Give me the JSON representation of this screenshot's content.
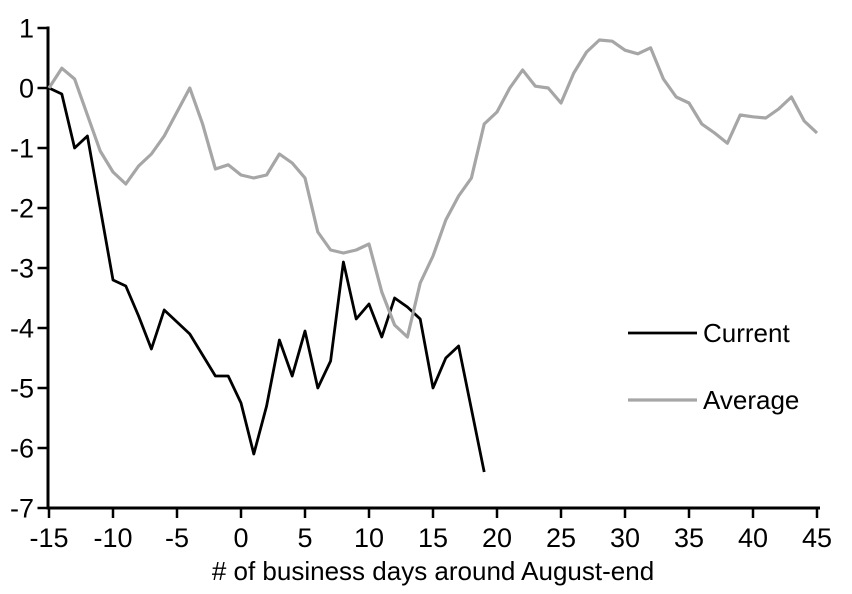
{
  "chart_data": {
    "type": "line",
    "title": "",
    "xlabel": "# of business days around August-end",
    "ylabel": "",
    "xlim": [
      -15,
      45
    ],
    "ylim": [
      -7,
      1
    ],
    "x_ticks": [
      -15,
      -10,
      -5,
      0,
      5,
      10,
      15,
      20,
      25,
      30,
      35,
      40,
      45
    ],
    "y_ticks": [
      1,
      0,
      -1,
      -2,
      -3,
      -4,
      -5,
      -6,
      -7
    ],
    "grid": false,
    "legend_position": "right-middle",
    "axis_color": "#000000",
    "series": [
      {
        "name": "Current",
        "color": "#000000",
        "stroke_width": 2.8,
        "x_start": -15,
        "x_step": 1,
        "values": [
          0,
          -0.1,
          -1.0,
          -0.8,
          -2.0,
          -3.2,
          -3.3,
          -3.8,
          -4.35,
          -3.7,
          -3.9,
          -4.1,
          -4.45,
          -4.8,
          -4.8,
          -5.25,
          -6.1,
          -5.3,
          -4.2,
          -4.8,
          -4.05,
          -5.0,
          -4.55,
          -2.9,
          -3.85,
          -3.6,
          -4.15,
          -3.5,
          -3.65,
          -3.85,
          -5.0,
          -4.5,
          -4.3,
          -5.35,
          -6.4
        ]
      },
      {
        "name": "Average",
        "color": "#a6a6a6",
        "stroke_width": 3.2,
        "x_start": -15,
        "x_step": 1,
        "values": [
          0,
          0.33,
          0.15,
          -0.45,
          -1.05,
          -1.4,
          -1.6,
          -1.3,
          -1.1,
          -0.8,
          -0.4,
          0,
          -0.6,
          -1.35,
          -1.28,
          -1.45,
          -1.5,
          -1.45,
          -1.1,
          -1.25,
          -1.5,
          -2.4,
          -2.7,
          -2.75,
          -2.7,
          -2.6,
          -3.4,
          -3.95,
          -4.15,
          -3.25,
          -2.8,
          -2.2,
          -1.8,
          -1.5,
          -0.6,
          -0.4,
          0,
          0.3,
          0.03,
          0,
          -0.25,
          0.25,
          0.6,
          0.8,
          0.78,
          0.63,
          0.57,
          0.67,
          0.15,
          -0.15,
          -0.25,
          -0.6,
          -0.75,
          -0.92,
          -0.45,
          -0.48,
          -0.5,
          -0.35,
          -0.15,
          -0.55,
          -0.75
        ]
      }
    ]
  }
}
